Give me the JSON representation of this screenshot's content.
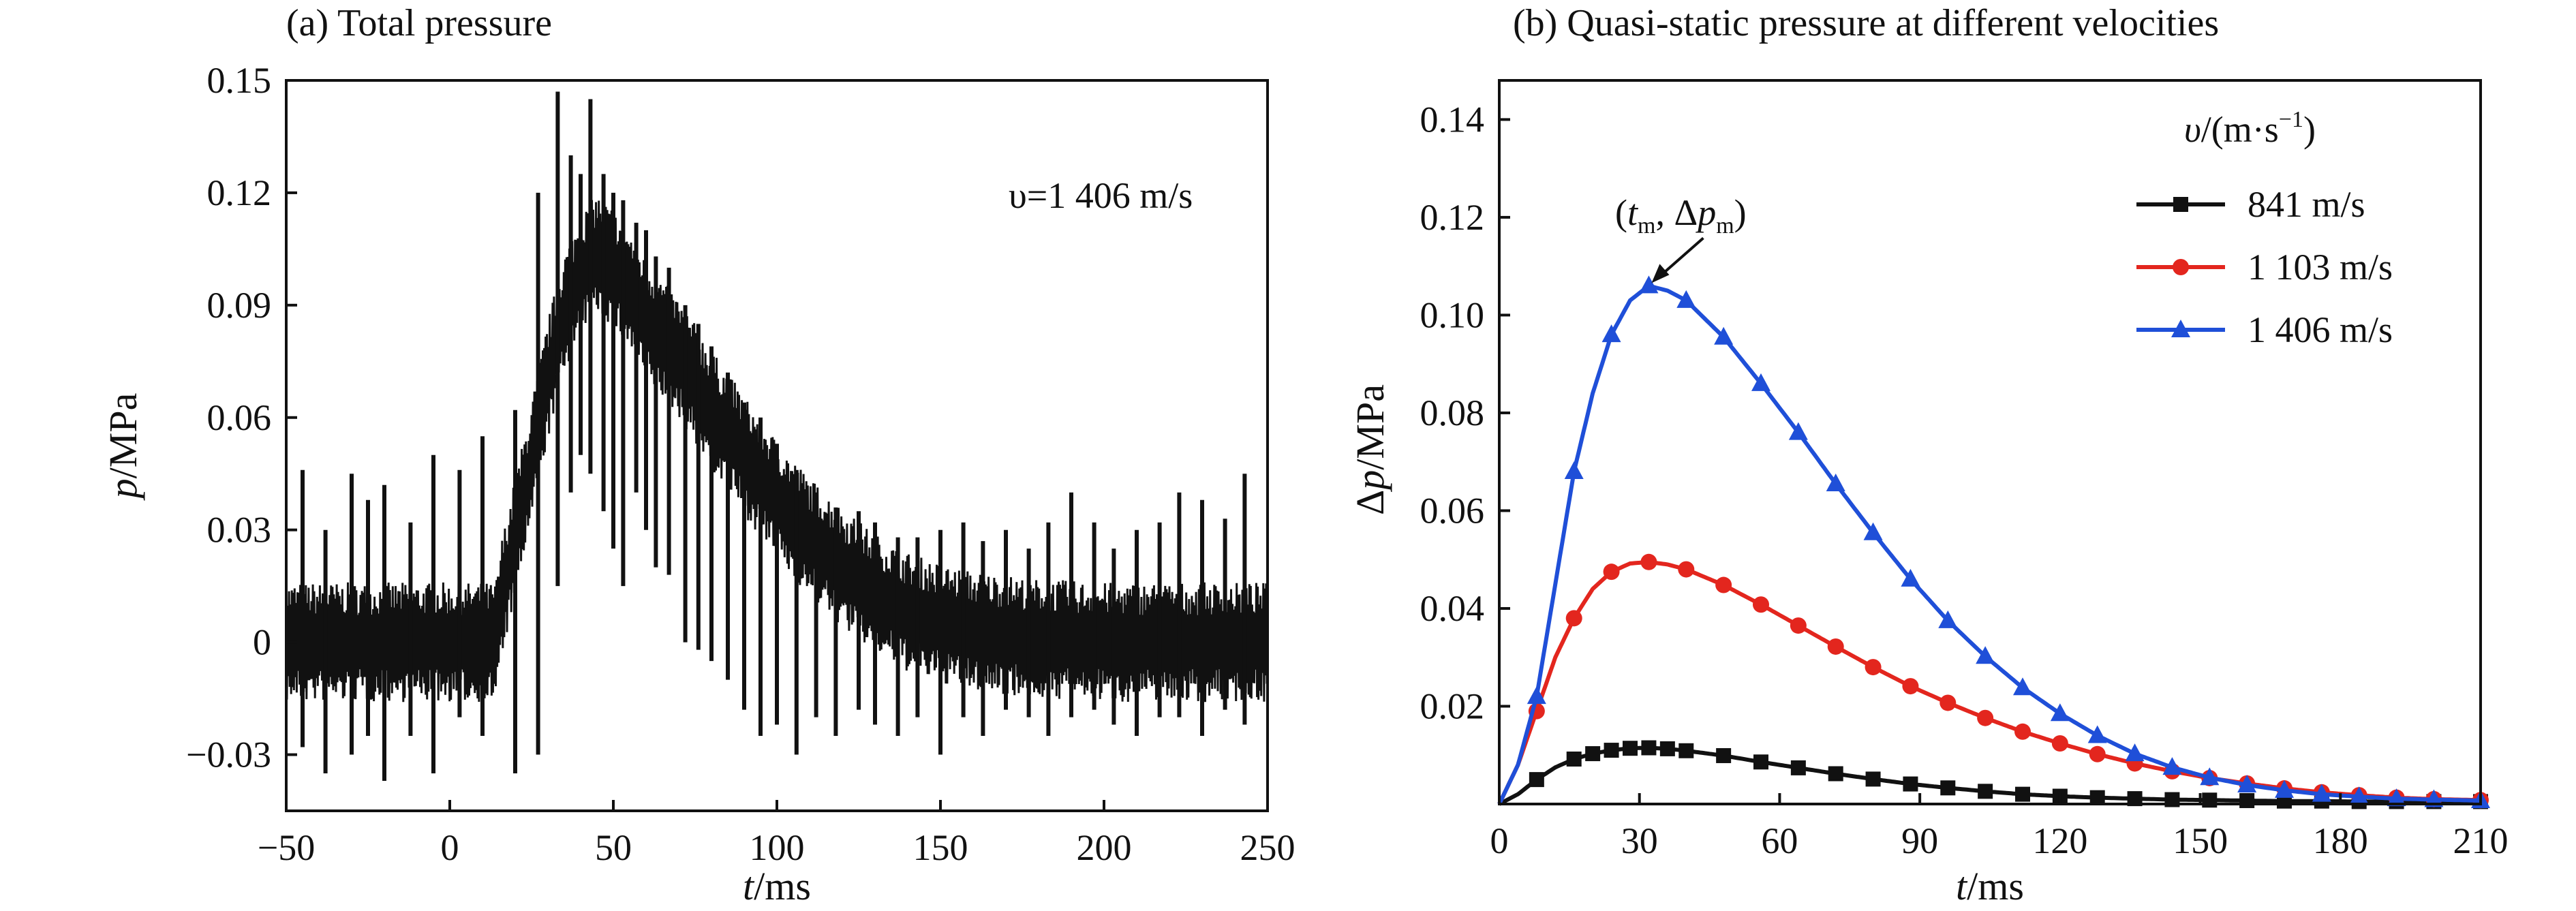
{
  "chart_data": [
    {
      "type": "line",
      "panel_title": "(a) Total pressure",
      "annotation": "υ=1 406 m/s",
      "xlabel_italic": "t",
      "xlabel_unit": "/ms",
      "ylabel_italic": "p",
      "ylabel_unit": "/MPa",
      "xlim": [
        -50,
        250
      ],
      "ylim": [
        -0.045,
        0.15
      ],
      "xticks": [
        -50,
        0,
        50,
        100,
        150,
        200,
        250
      ],
      "xtick_labels": [
        "−50",
        "0",
        "50",
        "100",
        "150",
        "200",
        "250"
      ],
      "yticks": [
        -0.03,
        0,
        0.03,
        0.06,
        0.09,
        0.12,
        0.15
      ],
      "ytick_labels": [
        "−0.03",
        "0",
        "0.03",
        "0.06",
        "0.09",
        "0.12",
        "0.15"
      ],
      "series": [
        {
          "name": "Total pressure",
          "color": "#111111",
          "x": [
            -50,
            -30,
            0,
            14,
            16,
            20,
            25,
            30,
            35,
            40,
            45,
            50,
            55,
            60,
            70,
            80,
            90,
            100,
            110,
            120,
            130,
            140,
            150,
            160,
            170,
            180,
            200,
            220,
            250
          ],
          "y": [
            0,
            0,
            0,
            0,
            0.012,
            0.028,
            0.048,
            0.07,
            0.088,
            0.098,
            0.104,
            0.1,
            0.094,
            0.086,
            0.076,
            0.062,
            0.05,
            0.038,
            0.028,
            0.02,
            0.013,
            0.008,
            0.005,
            0.003,
            0.002,
            0.001,
            0,
            0,
            0
          ],
          "band": 0.016,
          "spike_x": [
            -45,
            -38,
            -30,
            -25,
            -20,
            -12,
            -5,
            3,
            10,
            20,
            27,
            33,
            37,
            40,
            43,
            47,
            50,
            53,
            57,
            60,
            63,
            67,
            72,
            76,
            80,
            85,
            90,
            95,
            100,
            106,
            112,
            118,
            125,
            130,
            137,
            143,
            150,
            157,
            163,
            170,
            177,
            183,
            190,
            197,
            203,
            210,
            217,
            223,
            230,
            237,
            243
          ],
          "spike_up": [
            0.046,
            0.03,
            0.045,
            0.038,
            0.042,
            0.032,
            0.05,
            0.046,
            0.055,
            0.062,
            0.12,
            0.147,
            0.13,
            0.125,
            0.145,
            0.125,
            0.12,
            0.118,
            0.112,
            0.11,
            0.103,
            0.1,
            0.09,
            0.085,
            0.079,
            0.072,
            0.064,
            0.06,
            0.053,
            0.046,
            0.04,
            0.036,
            0.035,
            0.032,
            0.028,
            0.028,
            0.03,
            0.032,
            0.027,
            0.03,
            0.025,
            0.032,
            0.04,
            0.032,
            0.025,
            0.03,
            0.032,
            0.04,
            0.038,
            0.033,
            0.045
          ],
          "spike_down": [
            -0.028,
            -0.035,
            -0.03,
            -0.025,
            -0.037,
            -0.025,
            -0.035,
            -0.02,
            -0.025,
            -0.035,
            -0.03,
            0.015,
            0.04,
            0.05,
            0.045,
            0.035,
            0.025,
            0.015,
            0.04,
            0.03,
            0.02,
            0.018,
            0.0,
            -0.002,
            -0.005,
            -0.01,
            -0.018,
            -0.025,
            -0.022,
            -0.03,
            -0.02,
            -0.025,
            -0.018,
            -0.022,
            -0.025,
            -0.02,
            -0.03,
            -0.02,
            -0.025,
            -0.018,
            -0.02,
            -0.025,
            -0.02,
            -0.018,
            -0.022,
            -0.025,
            -0.02,
            -0.02,
            -0.025,
            -0.018,
            -0.022
          ]
        }
      ]
    },
    {
      "type": "line",
      "panel_title": "(b) Quasi-static pressure at different velocities",
      "xlabel_italic": "t",
      "xlabel_unit": "/ms",
      "ylabel_prefix": "Δ",
      "ylabel_italic": "p",
      "ylabel_unit": "/MPa",
      "xlim": [
        0,
        210
      ],
      "ylim": [
        0,
        0.148
      ],
      "xticks": [
        0,
        30,
        60,
        90,
        120,
        150,
        180,
        210
      ],
      "xtick_labels": [
        "0",
        "30",
        "60",
        "90",
        "120",
        "150",
        "180",
        "210"
      ],
      "yticks": [
        0.02,
        0.04,
        0.06,
        0.08,
        0.1,
        0.12,
        0.14
      ],
      "ytick_labels": [
        "0.02",
        "0.04",
        "0.06",
        "0.08",
        "0.10",
        "0.12",
        "0.14"
      ],
      "legend_title_italic": "υ",
      "legend_title_rest": "/(m·s",
      "legend_title_sup": "−1",
      "legend_title_close": ")",
      "annotation": {
        "open": "(",
        "t": "t",
        "t_sub": "m",
        "sep": ", Δ",
        "p": "p",
        "p_sub": "m",
        "close": ")",
        "target_x": 32,
        "target_y": 0.106
      },
      "series": [
        {
          "name": "841 m/s",
          "color": "#111111",
          "marker": "square",
          "x": [
            0,
            4,
            8,
            12,
            16,
            20,
            24,
            28,
            32,
            36,
            40,
            48,
            56,
            64,
            72,
            80,
            88,
            96,
            104,
            112,
            120,
            128,
            136,
            144,
            152,
            160,
            168,
            176,
            184,
            192,
            200,
            210
          ],
          "y": [
            0,
            0.002,
            0.005,
            0.0075,
            0.0092,
            0.0103,
            0.011,
            0.0114,
            0.0115,
            0.0113,
            0.0109,
            0.0099,
            0.0086,
            0.0074,
            0.0062,
            0.0051,
            0.0041,
            0.0033,
            0.0026,
            0.002,
            0.0016,
            0.0013,
            0.0011,
            0.0009,
            0.0008,
            0.0007,
            0.0006,
            0.0006,
            0.0005,
            0.0005,
            0.0005,
            0.0005
          ],
          "marker_x": [
            8,
            16,
            20,
            24,
            28,
            32,
            36,
            40,
            48,
            56,
            64,
            72,
            80,
            88,
            96,
            104,
            112,
            120,
            128,
            136,
            144,
            152,
            160,
            168,
            176,
            184,
            192,
            200,
            210
          ]
        },
        {
          "name": "1 103 m/s",
          "color": "#e3261e",
          "marker": "circle",
          "x": [
            0,
            4,
            8,
            12,
            16,
            20,
            24,
            28,
            32,
            36,
            40,
            48,
            56,
            64,
            72,
            80,
            88,
            96,
            104,
            112,
            120,
            128,
            136,
            144,
            152,
            160,
            168,
            176,
            184,
            192,
            200,
            210
          ],
          "y": [
            0,
            0.008,
            0.019,
            0.03,
            0.038,
            0.044,
            0.0475,
            0.0492,
            0.0495,
            0.049,
            0.048,
            0.0448,
            0.0408,
            0.0365,
            0.0322,
            0.028,
            0.0241,
            0.0207,
            0.0176,
            0.0148,
            0.0124,
            0.0102,
            0.0083,
            0.0067,
            0.0053,
            0.0042,
            0.0032,
            0.0024,
            0.0018,
            0.0013,
            0.001,
            0.0008
          ],
          "marker_x": [
            8,
            16,
            24,
            32,
            40,
            48,
            56,
            64,
            72,
            80,
            88,
            96,
            104,
            112,
            120,
            128,
            136,
            144,
            152,
            160,
            168,
            176,
            184,
            192,
            200,
            210
          ]
        },
        {
          "name": "1 406 m/s",
          "color": "#1f4fd8",
          "marker": "triangle",
          "x": [
            0,
            4,
            8,
            12,
            16,
            20,
            24,
            28,
            32,
            36,
            40,
            48,
            56,
            64,
            72,
            80,
            88,
            96,
            104,
            112,
            120,
            128,
            136,
            144,
            152,
            160,
            168,
            176,
            184,
            192,
            200,
            210
          ],
          "y": [
            0,
            0.008,
            0.022,
            0.045,
            0.068,
            0.084,
            0.096,
            0.103,
            0.106,
            0.105,
            0.103,
            0.0955,
            0.086,
            0.076,
            0.0655,
            0.0555,
            0.046,
            0.0375,
            0.0302,
            0.0238,
            0.0185,
            0.014,
            0.0103,
            0.0075,
            0.0054,
            0.0039,
            0.0028,
            0.002,
            0.0015,
            0.0011,
            0.0009,
            0.0007
          ],
          "marker_x": [
            8,
            16,
            24,
            32,
            40,
            48,
            56,
            64,
            72,
            80,
            88,
            96,
            104,
            112,
            120,
            128,
            136,
            144,
            152,
            160,
            168,
            176,
            184,
            192,
            200,
            210
          ]
        }
      ]
    }
  ]
}
